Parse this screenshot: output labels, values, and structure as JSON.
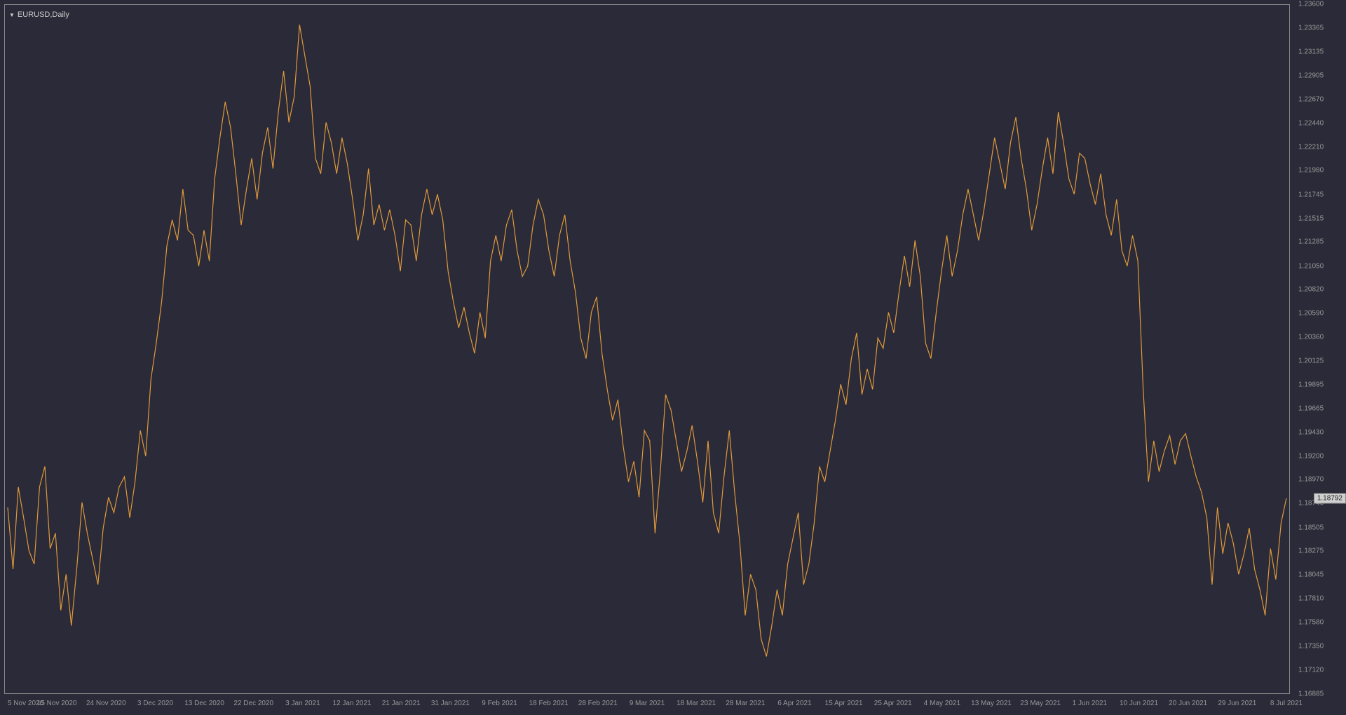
{
  "chart": {
    "title": "EURUSD,Daily",
    "type": "line",
    "background_color": "#2a2a38",
    "border_color": "#888888",
    "line_color": "#e09a3a",
    "text_color": "#999999",
    "title_color": "#cccccc",
    "current_price": "1.18792",
    "current_price_bg": "#d0d0d0",
    "current_price_fg": "#222222",
    "y_axis": {
      "min": 1.16885,
      "max": 1.236,
      "labels": [
        "1.23600",
        "1.23365",
        "1.23135",
        "1.22905",
        "1.22670",
        "1.22440",
        "1.22210",
        "1.21980",
        "1.21745",
        "1.21515",
        "1.21285",
        "1.21050",
        "1.20820",
        "1.20590",
        "1.20360",
        "1.20125",
        "1.19895",
        "1.19665",
        "1.19430",
        "1.19200",
        "1.18970",
        "1.18740",
        "1.18505",
        "1.18275",
        "1.18045",
        "1.17810",
        "1.17580",
        "1.17350",
        "1.17120",
        "1.16885"
      ]
    },
    "x_axis": {
      "labels": [
        "5 Nov 2020",
        "15 Nov 2020",
        "24 Nov 2020",
        "3 Dec 2020",
        "13 Dec 2020",
        "22 Dec 2020",
        "3 Jan 2021",
        "12 Jan 2021",
        "21 Jan 2021",
        "31 Jan 2021",
        "9 Feb 2021",
        "18 Feb 2021",
        "28 Feb 2021",
        "9 Mar 2021",
        "18 Mar 2021",
        "28 Mar 2021",
        "6 Apr 2021",
        "15 Apr 2021",
        "25 Apr 2021",
        "4 May 2021",
        "13 May 2021",
        "23 May 2021",
        "1 Jun 2021",
        "10 Jun 2021",
        "20 Jun 2021",
        "29 Jun 2021",
        "8 Jul 2021"
      ]
    },
    "data": [
      1.187,
      1.181,
      1.189,
      1.186,
      1.1828,
      1.1815,
      1.189,
      1.191,
      1.183,
      1.1845,
      1.177,
      1.1805,
      1.1755,
      1.181,
      1.1875,
      1.1845,
      1.182,
      1.1795,
      1.185,
      1.188,
      1.1865,
      1.189,
      1.19,
      1.186,
      1.1895,
      1.1945,
      1.192,
      1.1995,
      1.203,
      1.207,
      1.2125,
      1.215,
      1.213,
      1.218,
      1.214,
      1.2135,
      1.2105,
      1.214,
      1.211,
      1.219,
      1.223,
      1.2265,
      1.224,
      1.2195,
      1.2145,
      1.218,
      1.221,
      1.217,
      1.2215,
      1.224,
      1.22,
      1.2255,
      1.2295,
      1.2245,
      1.227,
      1.234,
      1.231,
      1.228,
      1.221,
      1.2195,
      1.2245,
      1.2225,
      1.2195,
      1.223,
      1.2205,
      1.217,
      1.213,
      1.2155,
      1.22,
      1.2145,
      1.2165,
      1.214,
      1.216,
      1.2135,
      1.21,
      1.215,
      1.2145,
      1.211,
      1.2155,
      1.218,
      1.2155,
      1.2175,
      1.215,
      1.21,
      1.207,
      1.2045,
      1.2065,
      1.204,
      1.202,
      1.206,
      1.2035,
      1.211,
      1.2135,
      1.211,
      1.2145,
      1.216,
      1.212,
      1.2095,
      1.2105,
      1.2145,
      1.217,
      1.2155,
      1.212,
      1.2095,
      1.2135,
      1.2155,
      1.211,
      1.208,
      1.2035,
      1.2015,
      1.206,
      1.2075,
      1.202,
      1.1985,
      1.1955,
      1.1975,
      1.193,
      1.1895,
      1.1915,
      1.188,
      1.1945,
      1.1935,
      1.1845,
      1.1905,
      1.198,
      1.1965,
      1.1935,
      1.1905,
      1.1925,
      1.195,
      1.1915,
      1.1875,
      1.1935,
      1.1865,
      1.1845,
      1.19,
      1.1945,
      1.1885,
      1.1835,
      1.1765,
      1.1805,
      1.179,
      1.1742,
      1.1725,
      1.1755,
      1.179,
      1.1765,
      1.1815,
      1.184,
      1.1865,
      1.1795,
      1.1815,
      1.1855,
      1.191,
      1.1895,
      1.1925,
      1.1955,
      1.199,
      1.197,
      1.2015,
      1.204,
      1.198,
      1.2005,
      1.1985,
      1.2035,
      1.2025,
      1.206,
      1.204,
      1.208,
      1.2115,
      1.2085,
      1.213,
      1.2095,
      1.203,
      1.2015,
      1.206,
      1.21,
      1.2135,
      1.2095,
      1.212,
      1.2155,
      1.218,
      1.2155,
      1.213,
      1.216,
      1.2195,
      1.223,
      1.2205,
      1.218,
      1.2225,
      1.225,
      1.221,
      1.218,
      1.214,
      1.2165,
      1.22,
      1.223,
      1.2195,
      1.2255,
      1.2225,
      1.219,
      1.2175,
      1.2215,
      1.221,
      1.2185,
      1.2165,
      1.2195,
      1.2155,
      1.2135,
      1.217,
      1.212,
      1.2105,
      1.2135,
      1.211,
      1.1985,
      1.1895,
      1.1935,
      1.1905,
      1.1925,
      1.194,
      1.1912,
      1.1935,
      1.1942,
      1.192,
      1.19,
      1.1885,
      1.186,
      1.1795,
      1.187,
      1.1825,
      1.1855,
      1.1835,
      1.1805,
      1.1825,
      1.185,
      1.181,
      1.179,
      1.1765,
      1.183,
      1.18,
      1.1855,
      1.18792
    ]
  }
}
